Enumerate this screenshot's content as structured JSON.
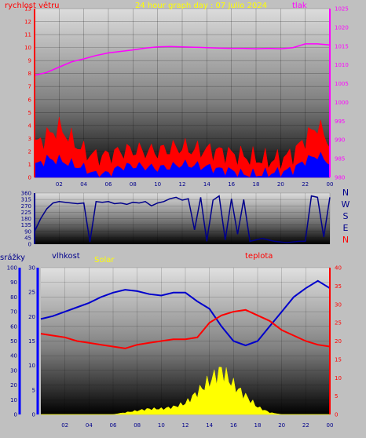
{
  "header": {
    "title": "24 hour graph day : 07 Julio 2024",
    "left_title": "rychlost větru",
    "right_title": "tlak"
  },
  "chart_data": [
    {
      "type": "line",
      "name": "wind-pressure",
      "title": "24 hour graph day : 07 Julio 2024",
      "ylabel_left": "rychlost větru",
      "ylabel_right": "tlak",
      "ylim_left": [
        0,
        13
      ],
      "ylim_right": [
        980,
        1025
      ],
      "yticks_left": [
        "0",
        "1",
        "2",
        "3",
        "4",
        "5",
        "6",
        "7",
        "8",
        "9",
        "10",
        "11",
        "12",
        "13"
      ],
      "yticks_right": [
        "980",
        "985",
        "990",
        "995",
        "1000",
        "1005",
        "1010",
        "1015",
        "1020",
        "1025"
      ],
      "xticks": [
        "02",
        "04",
        "06",
        "08",
        "10",
        "12",
        "14",
        "16",
        "18",
        "20",
        "22",
        "00"
      ],
      "colors": {
        "pressure": "#ff00ff",
        "wind_gust": "#ff0000",
        "wind_avg": "#0000ff",
        "axis_left": "#ff0000",
        "axis_right": "#ff00ff"
      },
      "x_hours": [
        0,
        1,
        2,
        3,
        4,
        5,
        6,
        7,
        8,
        9,
        10,
        11,
        12,
        13,
        14,
        15,
        16,
        17,
        18,
        19,
        20,
        21,
        22,
        23,
        24
      ],
      "pressure": [
        1007.2,
        1008.0,
        1009.4,
        1010.8,
        1011.6,
        1012.5,
        1013.2,
        1013.6,
        1014.0,
        1014.5,
        1014.8,
        1014.9,
        1014.8,
        1014.7,
        1014.6,
        1014.5,
        1014.4,
        1014.4,
        1014.3,
        1014.4,
        1014.3,
        1014.6,
        1015.6,
        1015.6,
        1015.3
      ],
      "wind_gust": [
        2.5,
        3.2,
        3.8,
        2.9,
        2.0,
        1.6,
        1.7,
        2.0,
        2.1,
        2.0,
        2.0,
        2.2,
        2.3,
        2.1,
        2.1,
        2.0,
        1.8,
        1.6,
        1.4,
        1.3,
        1.4,
        1.8,
        3.0,
        4.0,
        2.6
      ],
      "wind_avg": [
        0.9,
        1.4,
        1.3,
        1.0,
        0.7,
        0.2,
        0.3,
        0.8,
        0.9,
        0.8,
        0.7,
        0.8,
        1.0,
        0.9,
        0.8,
        0.6,
        0.5,
        0.2,
        0.2,
        0.3,
        0.4,
        0.6,
        1.3,
        1.7,
        1.1
      ]
    },
    {
      "type": "line",
      "name": "wind-direction",
      "ylim": [
        0,
        360
      ],
      "yticks": [
        "0",
        "45",
        "90",
        "135",
        "180",
        "225",
        "270",
        "315",
        "360"
      ],
      "compass": [
        "N",
        "W",
        "S",
        "E",
        "N"
      ],
      "xticks": [
        "02",
        "04",
        "06",
        "08",
        "10",
        "12",
        "14",
        "16",
        "18",
        "20",
        "22",
        "00"
      ],
      "colors": {
        "direction": "#00008b",
        "compass": "#00008b",
        "compass_bottom": "#ff0000"
      },
      "x_hours": [
        0,
        0.5,
        1,
        1.5,
        2,
        2.5,
        3,
        3.5,
        4,
        4.5,
        5,
        5.5,
        6,
        6.5,
        7,
        7.5,
        8,
        8.5,
        9,
        9.5,
        10,
        10.5,
        11,
        11.5,
        12,
        12.5,
        13,
        13.5,
        14,
        14.5,
        15,
        15.5,
        16,
        16.5,
        17,
        17.5,
        18,
        18.5,
        19,
        19.5,
        20,
        20.5,
        21,
        21.5,
        22,
        22.5,
        23,
        23.5,
        24
      ],
      "direction": [
        90,
        180,
        250,
        290,
        300,
        295,
        290,
        285,
        290,
        15,
        300,
        295,
        300,
        285,
        290,
        280,
        295,
        290,
        300,
        270,
        290,
        300,
        320,
        330,
        310,
        320,
        100,
        330,
        20,
        310,
        340,
        30,
        320,
        70,
        315,
        20,
        30,
        40,
        30,
        20,
        15,
        10,
        15,
        20,
        20,
        340,
        330,
        50,
        330
      ]
    },
    {
      "type": "line",
      "name": "humidity-temperature-solar",
      "left_axis1_title": "srážky",
      "left_axis2_title": "vlhkost",
      "solar_label": "Solar",
      "right_axis_title": "teplota",
      "ylim_humidity": [
        0,
        100
      ],
      "ylim_rain": [
        0,
        30
      ],
      "ylim_temp": [
        0,
        40
      ],
      "yticks_humidity": [
        "0",
        "10",
        "20",
        "30",
        "40",
        "50",
        "60",
        "70",
        "80",
        "90",
        "100"
      ],
      "yticks_rain": [
        "0",
        "5",
        "10",
        "15",
        "20",
        "25",
        "30"
      ],
      "yticks_temp": [
        "0",
        "5",
        "10",
        "15",
        "20",
        "25",
        "30",
        "35",
        "40"
      ],
      "xticks": [
        "02",
        "04",
        "06",
        "08",
        "10",
        "12",
        "14",
        "16",
        "18",
        "20",
        "22",
        "00"
      ],
      "colors": {
        "humidity": "#0000cc",
        "temperature": "#ff0000",
        "solar": "#ffff00",
        "rain": "#0000ff",
        "temp_axis": "#ff0000"
      },
      "x_hours": [
        0,
        1,
        2,
        3,
        4,
        5,
        6,
        7,
        8,
        9,
        10,
        11,
        12,
        13,
        14,
        15,
        16,
        17,
        18,
        19,
        20,
        21,
        22,
        23,
        24
      ],
      "humidity": [
        65,
        67,
        70,
        73,
        76,
        80,
        83,
        85,
        84,
        82,
        81,
        83,
        83,
        77,
        72,
        60,
        50,
        47,
        50,
        60,
        70,
        80,
        86,
        91,
        86
      ],
      "temperature": [
        22,
        21.5,
        21,
        20,
        19.5,
        19,
        18.5,
        18,
        19,
        19.5,
        20,
        20.5,
        20.5,
        21,
        25,
        27,
        28,
        28.5,
        27,
        25.5,
        23,
        21.5,
        20,
        19,
        18.5
      ],
      "solar": [
        0,
        0,
        0,
        0,
        0,
        0,
        0,
        0.5,
        1,
        1.5,
        1.5,
        2,
        3,
        6,
        9,
        12,
        8,
        5,
        2,
        0.5,
        0,
        0,
        0,
        0,
        0
      ]
    }
  ]
}
